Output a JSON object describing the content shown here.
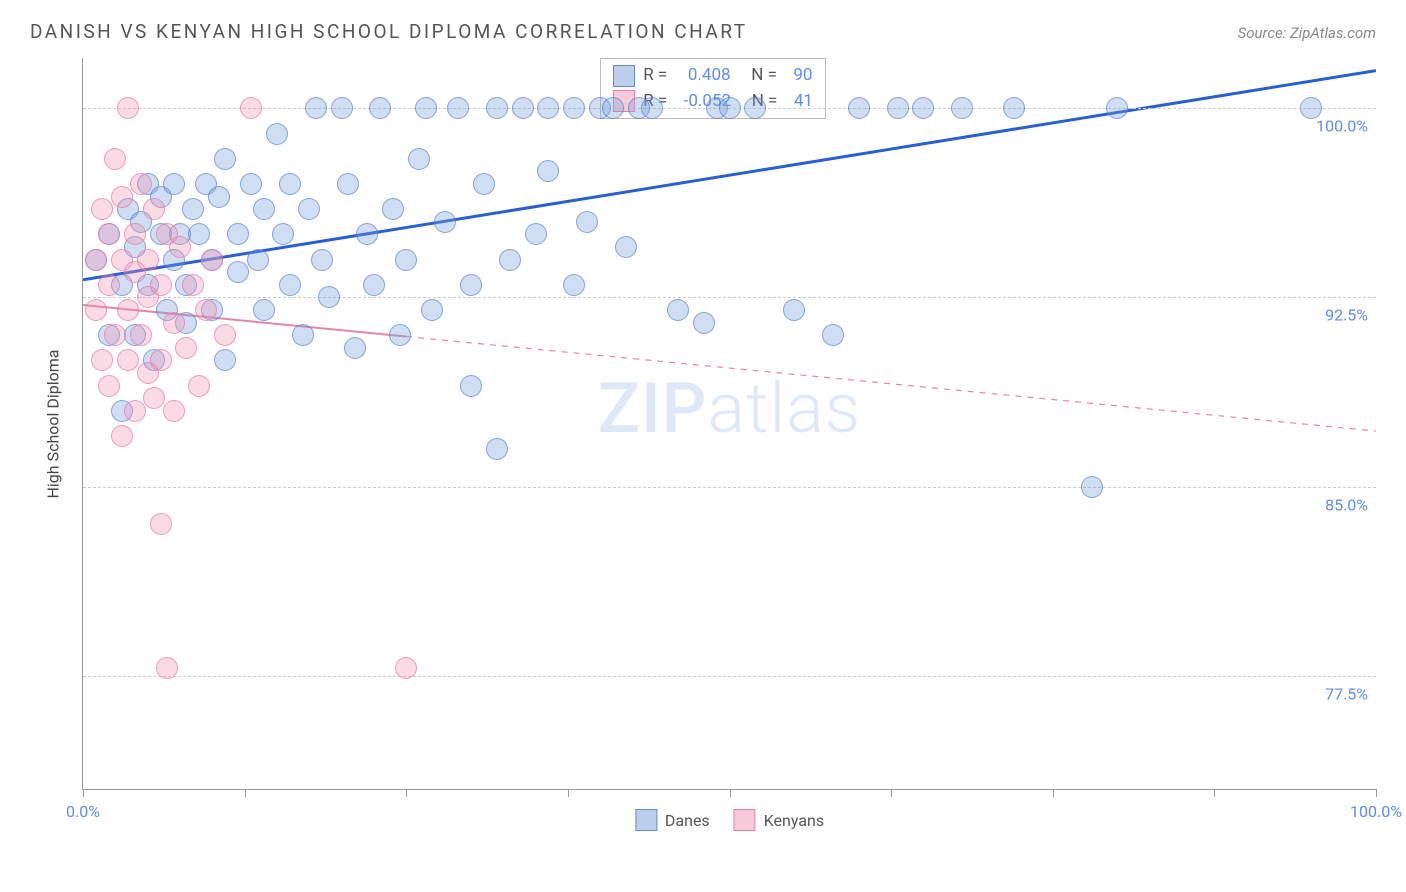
{
  "title": "DANISH VS KENYAN HIGH SCHOOL DIPLOMA CORRELATION CHART",
  "source": "Source: ZipAtlas.com",
  "y_axis_title": "High School Diploma",
  "watermark_bold": "ZIP",
  "watermark_rest": "atlas",
  "chart": {
    "type": "scatter",
    "xlim": [
      0,
      100
    ],
    "ylim": [
      73,
      102
    ],
    "y_ticks": [
      77.5,
      85.0,
      92.5,
      100.0
    ],
    "y_tick_labels": [
      "77.5%",
      "85.0%",
      "92.5%",
      "100.0%"
    ],
    "x_ticks": [
      0,
      12.5,
      25,
      37.5,
      50,
      62.5,
      75,
      87.5,
      100
    ],
    "x_label_0": "0.0%",
    "x_label_100": "100.0%",
    "background_color": "#ffffff",
    "grid_color": "#cccccc",
    "marker_radius": 11,
    "series": [
      {
        "name": "Danes",
        "color_fill": "rgba(120,160,220,0.35)",
        "color_stroke": "rgba(80,120,200,0.6)",
        "R": "0.408",
        "N": "90",
        "trend": {
          "x1": 0,
          "y1": 93.2,
          "x2": 100,
          "y2": 101.5,
          "color": "#2a5fd0",
          "width": 3,
          "dash": "none"
        },
        "points": [
          [
            1,
            94
          ],
          [
            2,
            91
          ],
          [
            2,
            95
          ],
          [
            3,
            93
          ],
          [
            3,
            88
          ],
          [
            3.5,
            96
          ],
          [
            4,
            94.5
          ],
          [
            4,
            91
          ],
          [
            4.5,
            95.5
          ],
          [
            5,
            97
          ],
          [
            5,
            93
          ],
          [
            5.5,
            90
          ],
          [
            6,
            95
          ],
          [
            6,
            96.5
          ],
          [
            6.5,
            92
          ],
          [
            7,
            94
          ],
          [
            7,
            97
          ],
          [
            7.5,
            95
          ],
          [
            8,
            93
          ],
          [
            8,
            91.5
          ],
          [
            8.5,
            96
          ],
          [
            9,
            95
          ],
          [
            9.5,
            97
          ],
          [
            10,
            94
          ],
          [
            10,
            92
          ],
          [
            10.5,
            96.5
          ],
          [
            11,
            98
          ],
          [
            11,
            90
          ],
          [
            12,
            95
          ],
          [
            12,
            93.5
          ],
          [
            13,
            97
          ],
          [
            13.5,
            94
          ],
          [
            14,
            96
          ],
          [
            14,
            92
          ],
          [
            15,
            99
          ],
          [
            15.5,
            95
          ],
          [
            16,
            97
          ],
          [
            16,
            93
          ],
          [
            17,
            91
          ],
          [
            17.5,
            96
          ],
          [
            18,
            100
          ],
          [
            18.5,
            94
          ],
          [
            19,
            92.5
          ],
          [
            20,
            100
          ],
          [
            20.5,
            97
          ],
          [
            21,
            90.5
          ],
          [
            22,
            95
          ],
          [
            22.5,
            93
          ],
          [
            23,
            100
          ],
          [
            24,
            96
          ],
          [
            24.5,
            91
          ],
          [
            25,
            94
          ],
          [
            26,
            98
          ],
          [
            26.5,
            100
          ],
          [
            27,
            92
          ],
          [
            28,
            95.5
          ],
          [
            29,
            100
          ],
          [
            30,
            93
          ],
          [
            30,
            89
          ],
          [
            31,
            97
          ],
          [
            32,
            100
          ],
          [
            32,
            86.5
          ],
          [
            33,
            94
          ],
          [
            34,
            100
          ],
          [
            35,
            95
          ],
          [
            36,
            100
          ],
          [
            36,
            97.5
          ],
          [
            38,
            93
          ],
          [
            38,
            100
          ],
          [
            39,
            95.5
          ],
          [
            40,
            100
          ],
          [
            41,
            100
          ],
          [
            42,
            94.5
          ],
          [
            43,
            100
          ],
          [
            44,
            100
          ],
          [
            46,
            92
          ],
          [
            48,
            91.5
          ],
          [
            49,
            100
          ],
          [
            50,
            100
          ],
          [
            52,
            100
          ],
          [
            55,
            92
          ],
          [
            58,
            91
          ],
          [
            60,
            100
          ],
          [
            63,
            100
          ],
          [
            65,
            100
          ],
          [
            68,
            100
          ],
          [
            72,
            100
          ],
          [
            78,
            85
          ],
          [
            80,
            100
          ],
          [
            95,
            100
          ]
        ]
      },
      {
        "name": "Kenyans",
        "color_fill": "rgba(240,150,180,0.35)",
        "color_stroke": "rgba(230,110,160,0.6)",
        "R": "-0.052",
        "N": "41",
        "trend": {
          "x1": 0,
          "y1": 92.2,
          "x2": 100,
          "y2": 87.2,
          "solid_until_x": 25,
          "color": "#e386a8",
          "width": 2,
          "dash": "6 6"
        },
        "points": [
          [
            1,
            92
          ],
          [
            1,
            94
          ],
          [
            1.5,
            90
          ],
          [
            1.5,
            96
          ],
          [
            2,
            93
          ],
          [
            2,
            89
          ],
          [
            2,
            95
          ],
          [
            2.5,
            98
          ],
          [
            2.5,
            91
          ],
          [
            3,
            94
          ],
          [
            3,
            87
          ],
          [
            3,
            96.5
          ],
          [
            3.5,
            92
          ],
          [
            3.5,
            90
          ],
          [
            3.5,
            100
          ],
          [
            4,
            93.5
          ],
          [
            4,
            88
          ],
          [
            4,
            95
          ],
          [
            4.5,
            91
          ],
          [
            4.5,
            97
          ],
          [
            5,
            94
          ],
          [
            5,
            89.5
          ],
          [
            5,
            92.5
          ],
          [
            5.5,
            96
          ],
          [
            5.5,
            88.5
          ],
          [
            6,
            93
          ],
          [
            6,
            90
          ],
          [
            6.5,
            95
          ],
          [
            7,
            91.5
          ],
          [
            7,
            88
          ],
          [
            7.5,
            94.5
          ],
          [
            8,
            90.5
          ],
          [
            8.5,
            93
          ],
          [
            9,
            89
          ],
          [
            9.5,
            92
          ],
          [
            10,
            94
          ],
          [
            11,
            91
          ],
          [
            13,
            100
          ],
          [
            6,
            83.5
          ],
          [
            6.5,
            77.8
          ],
          [
            25,
            77.8
          ]
        ]
      }
    ]
  },
  "legend_bottom": [
    {
      "label": "Danes",
      "swatch": "blue"
    },
    {
      "label": "Kenyans",
      "swatch": "pink"
    }
  ],
  "legend_top_rows": [
    {
      "swatch": "blue",
      "R_label": "R =",
      "R_val": " 0.408",
      "N_label": "N =",
      "N_val": " 90"
    },
    {
      "swatch": "pink",
      "R_label": "R =",
      "R_val": "-0.052",
      "N_label": "N =",
      "N_val": " 41"
    }
  ]
}
